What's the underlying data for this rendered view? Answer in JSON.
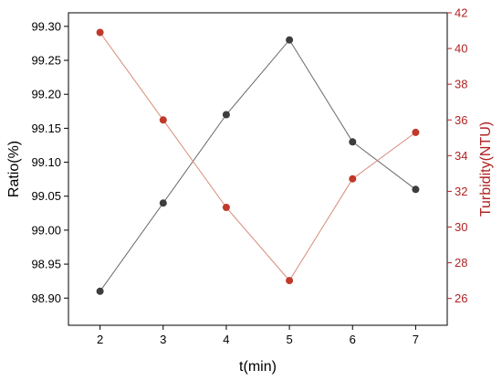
{
  "chart_data": {
    "type": "line",
    "xlabel": "t(min)",
    "x": [
      2,
      3,
      4,
      5,
      6,
      7
    ],
    "xlim": [
      1.5,
      7.5
    ],
    "xticks": [
      2,
      3,
      4,
      5,
      6,
      7
    ],
    "left_axis": {
      "label": "Ratio(%)",
      "ylim": [
        98.86,
        99.32
      ],
      "ticks": [
        "98.90",
        "98.95",
        "99.00",
        "99.05",
        "99.10",
        "99.15",
        "99.20",
        "99.25",
        "99.30"
      ],
      "color": "#000000"
    },
    "right_axis": {
      "label": "Turbidity(NTU)",
      "ylim": [
        24.5,
        42
      ],
      "ticks": [
        "26",
        "28",
        "30",
        "32",
        "34",
        "36",
        "38",
        "40",
        "42"
      ],
      "color": "#b22222"
    },
    "series": [
      {
        "axis": "left",
        "color": "#3d3d3d",
        "line_color": "#6b6b6b",
        "values": [
          98.91,
          99.04,
          99.17,
          99.28,
          99.13,
          99.06
        ]
      },
      {
        "axis": "right",
        "color": "#c0392b",
        "line_color": "#d98b7a",
        "values": [
          40.9,
          36.0,
          31.1,
          27.0,
          32.7,
          35.3
        ]
      }
    ],
    "grid": false,
    "legend": "none"
  }
}
